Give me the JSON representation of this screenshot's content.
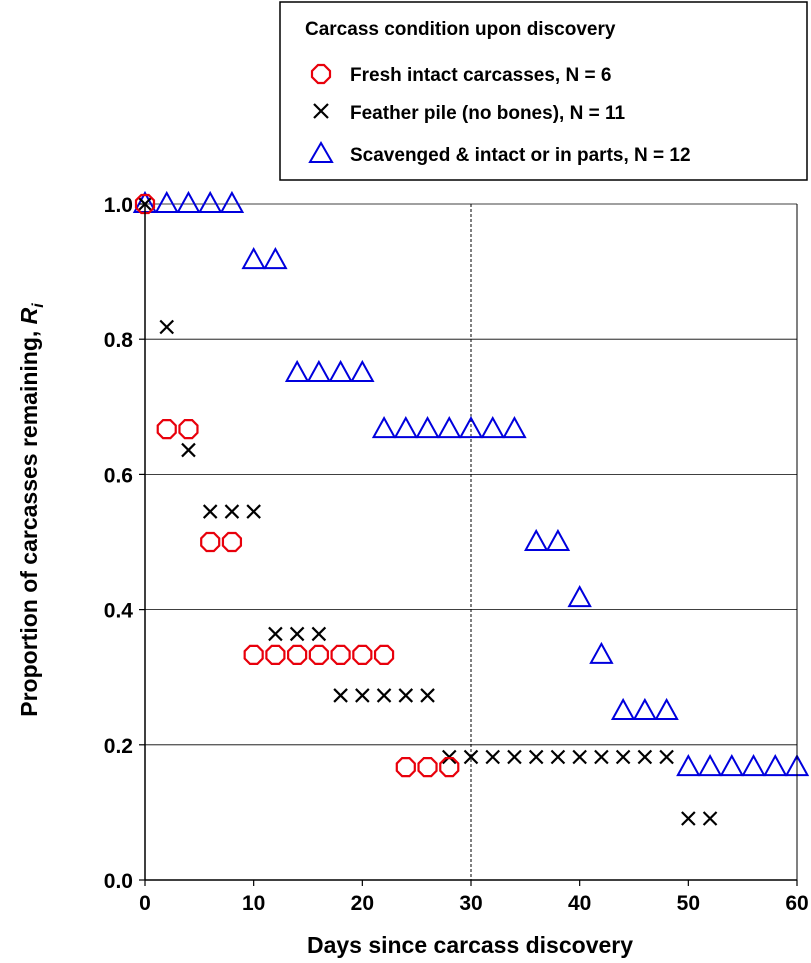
{
  "chart_data": {
    "type": "scatter",
    "legend": {
      "title": "Carcass condition upon discovery",
      "placement": "top-right"
    },
    "xlabel": "Days since carcass discovery",
    "ylabel_main": "Proportion of carcasses remaining, ",
    "ylabel_italic": "R",
    "ylabel_sub": "i",
    "xlim": [
      0,
      60
    ],
    "ylim": [
      0,
      1
    ],
    "xticks": [
      "0",
      "10",
      "20",
      "30",
      "40",
      "50",
      "60"
    ],
    "yticks": [
      "0.0",
      "0.2",
      "0.4",
      "0.6",
      "0.8",
      "1.0"
    ],
    "grid": "horizontal",
    "reference_line_x": 30,
    "series": [
      {
        "name": "Fresh intact carcasses, N = 6",
        "marker": "circle",
        "color": "#e8000b",
        "x": [
          0,
          2,
          4,
          6,
          8,
          10,
          12,
          14,
          16,
          18,
          20,
          22,
          24,
          26,
          28
        ],
        "y": [
          1.0,
          0.667,
          0.667,
          0.5,
          0.5,
          0.333,
          0.333,
          0.333,
          0.333,
          0.333,
          0.333,
          0.333,
          0.167,
          0.167,
          0.167
        ]
      },
      {
        "name": "Feather pile (no bones), N = 11",
        "marker": "cross",
        "color": "#000000",
        "x": [
          0,
          2,
          4,
          6,
          8,
          10,
          12,
          14,
          16,
          18,
          20,
          22,
          24,
          26,
          28,
          30,
          32,
          34,
          36,
          38,
          40,
          42,
          44,
          46,
          48,
          50,
          52
        ],
        "y": [
          1.0,
          0.818,
          0.636,
          0.545,
          0.545,
          0.545,
          0.364,
          0.364,
          0.364,
          0.273,
          0.273,
          0.273,
          0.273,
          0.273,
          0.182,
          0.182,
          0.182,
          0.182,
          0.182,
          0.182,
          0.182,
          0.182,
          0.182,
          0.182,
          0.182,
          0.091,
          0.091
        ]
      },
      {
        "name": "Scavenged & intact or in parts, N = 12",
        "marker": "triangle",
        "color": "#0000dd",
        "x": [
          0,
          2,
          4,
          6,
          8,
          10,
          12,
          14,
          16,
          18,
          20,
          22,
          24,
          26,
          28,
          30,
          32,
          34,
          36,
          38,
          40,
          42,
          44,
          46,
          48,
          50,
          52,
          54,
          56,
          58,
          60
        ],
        "y": [
          1.0,
          1.0,
          1.0,
          1.0,
          1.0,
          0.917,
          0.917,
          0.75,
          0.75,
          0.75,
          0.75,
          0.667,
          0.667,
          0.667,
          0.667,
          0.667,
          0.667,
          0.667,
          0.5,
          0.5,
          0.417,
          0.333,
          0.25,
          0.25,
          0.25,
          0.167,
          0.167,
          0.167,
          0.167,
          0.167,
          0.167
        ]
      }
    ]
  }
}
